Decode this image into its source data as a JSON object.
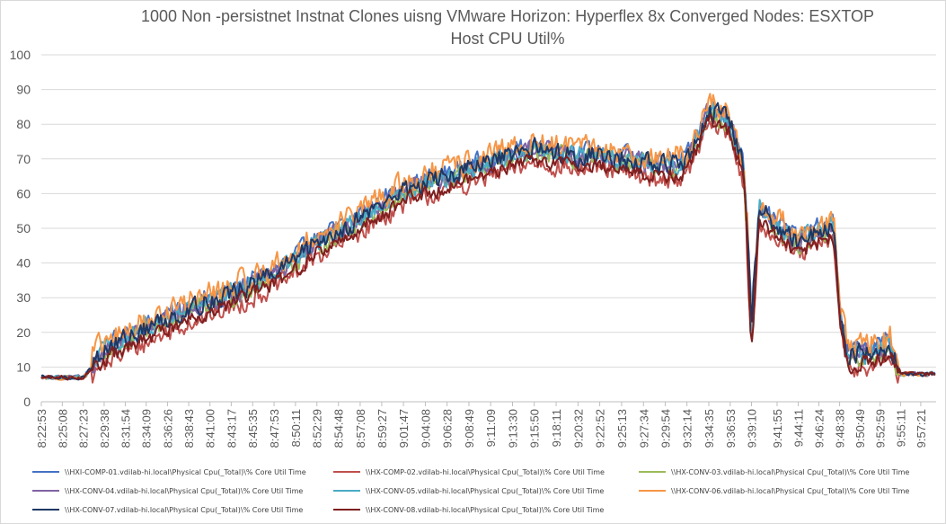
{
  "chart_data": {
    "type": "line",
    "title_line1": "1000 Non -persistnet Instnat Clones uisng VMware Horizon: Hyperflex 8x Converged Nodes: ESXTOP",
    "title_line2": "Host CPU Util%",
    "xlabel": "",
    "ylabel": "",
    "ylim": [
      0,
      100
    ],
    "yticks": [
      0,
      10,
      20,
      30,
      40,
      50,
      60,
      70,
      80,
      90,
      100
    ],
    "grid": true,
    "legend_position": "bottom",
    "x_start": "8:22:53",
    "x_end": "9:59:00",
    "x_tick_labels": [
      "8:22:53",
      "8:25:08",
      "8:27:23",
      "8:29:38",
      "8:31:54",
      "8:34:09",
      "8:36:26",
      "8:38:43",
      "8:41:00",
      "8:43:17",
      "8:45:35",
      "8:47:53",
      "8:50:11",
      "8:52:29",
      "8:54:48",
      "8:57:08",
      "8:59:27",
      "9:01:47",
      "9:04:08",
      "9:06:28",
      "9:08:49",
      "9:11:09",
      "9:13:30",
      "9:15:50",
      "9:18:11",
      "9:20:32",
      "9:22:52",
      "9:25:13",
      "9:27:34",
      "9:29:54",
      "9:32:14",
      "9:34:35",
      "9:36:53",
      "9:39:10",
      "9:41:55",
      "9:44:11",
      "9:46:24",
      "9:48:38",
      "9:50:49",
      "9:52:59",
      "9:55:11",
      "9:57:21"
    ],
    "profile": {
      "time_points": [
        "8:22:53",
        "8:27:23",
        "8:29:38",
        "8:31:54",
        "8:34:09",
        "8:36:26",
        "8:38:43",
        "8:41:00",
        "8:43:17",
        "8:45:35",
        "8:47:53",
        "8:50:11",
        "8:52:29",
        "8:54:48",
        "8:57:08",
        "8:59:27",
        "9:01:47",
        "9:04:08",
        "9:06:28",
        "9:08:49",
        "9:11:09",
        "9:13:30",
        "9:15:50",
        "9:18:11",
        "9:20:32",
        "9:22:52",
        "9:25:13",
        "9:27:34",
        "9:29:54",
        "9:32:14",
        "9:34:35",
        "9:36:53",
        "9:38:20",
        "9:38:40",
        "9:39:10",
        "9:40:00",
        "9:41:55",
        "9:44:11",
        "9:46:24",
        "9:48:00",
        "9:48:38",
        "9:49:30",
        "9:50:49",
        "9:52:59",
        "9:54:00",
        "9:55:11",
        "9:57:21",
        "9:59:00"
      ],
      "values": [
        7,
        7,
        14,
        17,
        20,
        23,
        26,
        28,
        30,
        33,
        36,
        40,
        45,
        48,
        52,
        56,
        60,
        62,
        64,
        66,
        68,
        70,
        72,
        71,
        70,
        70,
        69,
        68,
        67,
        68,
        83,
        80,
        66,
        50,
        20,
        55,
        50,
        45,
        48,
        50,
        25,
        12,
        13,
        14,
        16,
        8,
        8,
        8
      ]
    },
    "series": [
      {
        "name": "\\\\HXI-COMP-01.vdilab-hi.local\\Physical Cpu(_Total)\\% Core Util Time",
        "color": "#4472c4",
        "offset": 2,
        "noise": 4
      },
      {
        "name": "\\\\HX-COMP-02.vdilab-hi.local\\Physical Cpu(_Total)\\% Core Util Time",
        "color": "#c0504d",
        "offset": -3,
        "noise": 4
      },
      {
        "name": "\\\\HX-CONV-03.vdilab-hi.local\\Physical Cpu(_Total)\\% Core Util Time",
        "color": "#9bbb59",
        "offset": 0,
        "noise": 4
      },
      {
        "name": "\\\\HX-CONV-04.vdilab-hi.local\\Physical Cpu(_Total)\\% Core Util Time",
        "color": "#8064a2",
        "offset": 1,
        "noise": 4
      },
      {
        "name": "\\\\HX-CONV-05.vdilab-hi.local\\Physical Cpu(_Total)\\% Core Util Time",
        "color": "#4bacc6",
        "offset": 1,
        "noise": 4
      },
      {
        "name": "\\\\HX-CONV-06.vdilab-hi.local\\Physical Cpu(_Total)\\% Core Util Time",
        "color": "#f79646",
        "offset": 3,
        "noise": 5
      },
      {
        "name": "\\\\HX-CONV-07.vdilab-hi.local\\Physical Cpu(_Total)\\% Core Util Time",
        "color": "#1f3864",
        "offset": 1,
        "noise": 4
      },
      {
        "name": "\\\\HX-CONV-08.vdilab-hi.local\\Physical Cpu(_Total)\\% Core Util Time",
        "color": "#7f1f1f",
        "offset": -2,
        "noise": 3
      }
    ]
  }
}
